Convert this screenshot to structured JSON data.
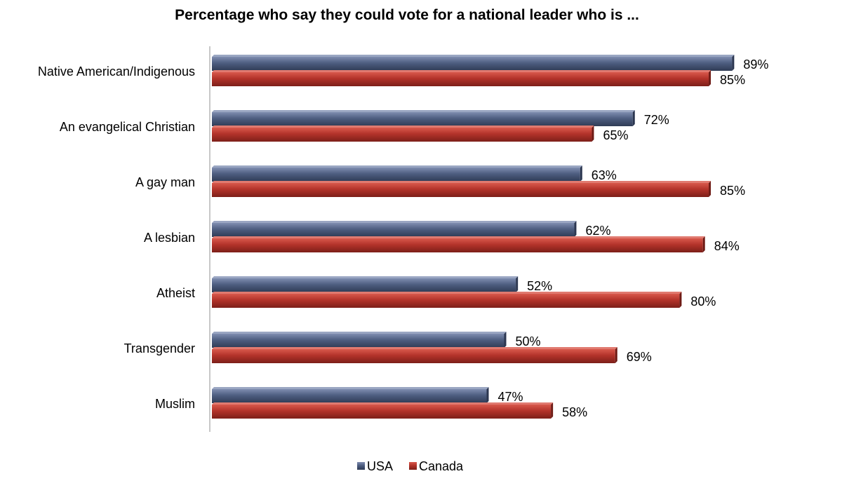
{
  "chart_data": {
    "type": "bar",
    "orientation": "horizontal",
    "title": "Percentage who say they could vote for a national leader who is ...",
    "categories": [
      "Native American/Indigenous",
      "An evangelical Christian",
      "A gay man",
      "A lesbian",
      "Atheist",
      "Transgender",
      "Muslim"
    ],
    "series": [
      {
        "name": "USA",
        "color": "#4a5a7a",
        "values": [
          89,
          72,
          63,
          62,
          52,
          50,
          47
        ],
        "labels": [
          "89%",
          "72%",
          "63%",
          "62%",
          "52%",
          "50%",
          "47%"
        ]
      },
      {
        "name": "Canada",
        "color": "#b03228",
        "values": [
          85,
          65,
          85,
          84,
          80,
          69,
          58
        ],
        "labels": [
          "85%",
          "65%",
          "85%",
          "84%",
          "80%",
          "69%",
          "58%"
        ]
      }
    ],
    "xlim": [
      0,
      100
    ],
    "grid": false,
    "legend_position": "bottom-center"
  }
}
